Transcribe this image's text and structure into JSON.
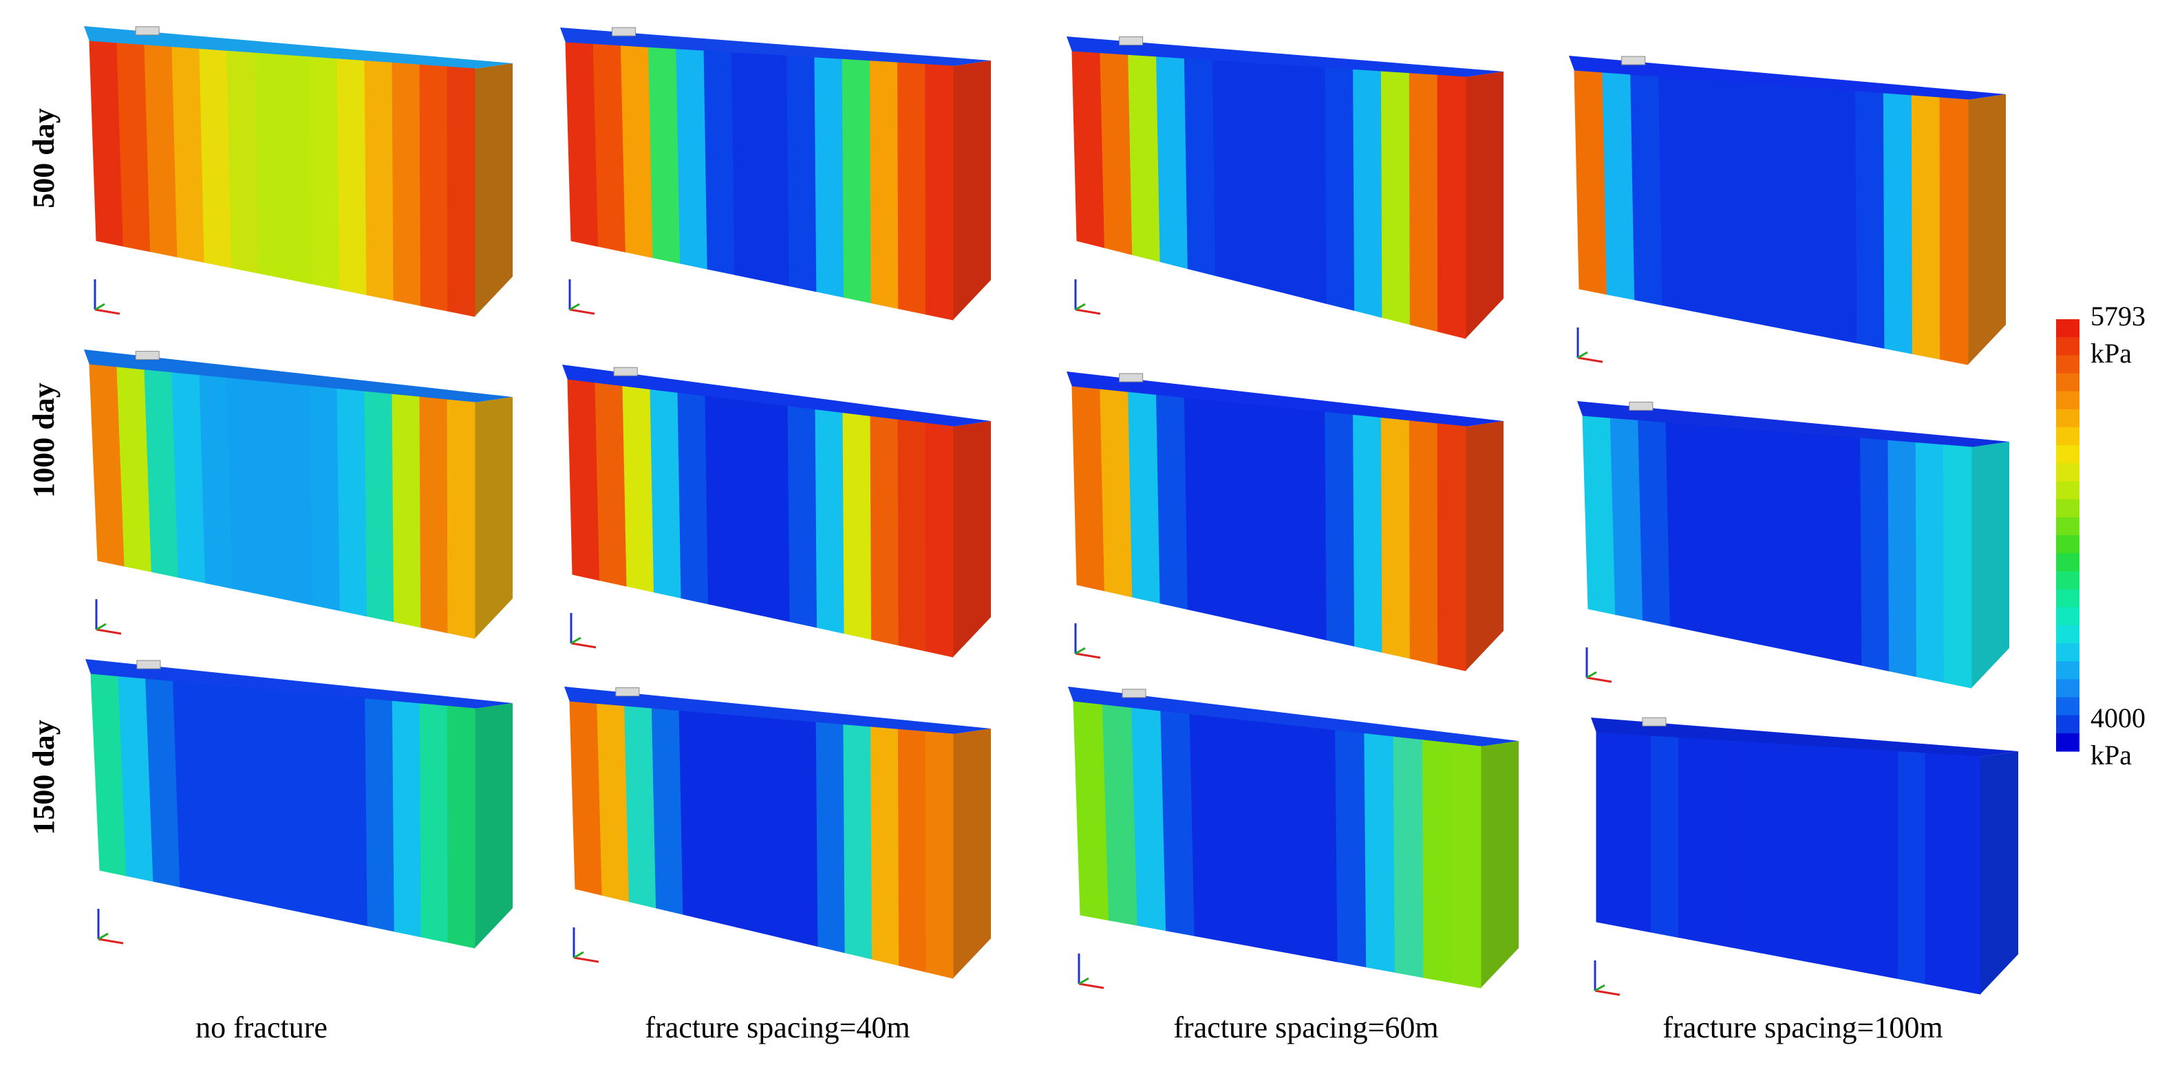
{
  "row_labels": [
    "500 day",
    "1000 day",
    "1500 day"
  ],
  "column_labels": [
    "no fracture",
    "fracture spacing=40m",
    "fracture spacing=60m",
    "fracture spacing=100m"
  ],
  "colorbar": {
    "max_value": "5793",
    "max_unit": "kPa",
    "min_value": "4000",
    "min_unit": "kPa",
    "colors": [
      "#0000d8",
      "#0a3fe6",
      "#0f66ee",
      "#138bf2",
      "#14a9f2",
      "#14c8ee",
      "#12e0dc",
      "#10e8c0",
      "#12e89c",
      "#18e474",
      "#24dc48",
      "#46dc22",
      "#70e018",
      "#98e410",
      "#bce80c",
      "#dce60a",
      "#f4e006",
      "#f8c806",
      "#f8ac06",
      "#f69006",
      "#f27406",
      "#ee5808",
      "#ec3c0a",
      "#e8200c"
    ]
  },
  "panels": [
    [
      {
        "left": "#c83e10",
        "right": "#b06a12",
        "top": "#1aa0e8",
        "bands": [
          "#e63010",
          "#ee5008",
          "#f28006",
          "#f4b006",
          "#e8dc0a",
          "#c8e40c",
          "#bce80c",
          "#bce80c",
          "#c2e80c",
          "#e6e00a",
          "#f4b006",
          "#f28006",
          "#ee5008",
          "#e63c0c"
        ]
      },
      {
        "left": "#c83e10",
        "right": "#c82c10",
        "top": "#1244e8",
        "bands": [
          "#e63010",
          "#ee5008",
          "#f6a006",
          "#34e060",
          "#12b4f2",
          "#0a44e8",
          "#0a34e4",
          "#0a34e4",
          "#0a44e8",
          "#12b4f2",
          "#34e060",
          "#f6a006",
          "#ee5008",
          "#e63010"
        ]
      },
      {
        "left": "#c83e10",
        "right": "#c82c10",
        "top": "#0f3ce8",
        "bands": [
          "#e63010",
          "#f07006",
          "#b0e80e",
          "#12b4f2",
          "#0a44e8",
          "#0a34e4",
          "#0a34e4",
          "#0a34e4",
          "#0a34e4",
          "#0a44e8",
          "#12b4f2",
          "#b0e80e",
          "#f07006",
          "#e63010"
        ]
      },
      {
        "left": "#c06010",
        "right": "#b86a12",
        "top": "#0f30e8",
        "bands": [
          "#f07006",
          "#14b4f2",
          "#0a44e8",
          "#0a34e4",
          "#0a34e4",
          "#0a34e4",
          "#0a34e4",
          "#0a34e4",
          "#0a34e4",
          "#0a34e4",
          "#0a44e8",
          "#12b4f2",
          "#f4b006",
          "#f07006"
        ]
      }
    ],
    [
      {
        "left": "#c86010",
        "right": "#b88c10",
        "top": "#1270e0",
        "bands": [
          "#f08006",
          "#bce80c",
          "#1ad8b0",
          "#14c0ee",
          "#12a6f0",
          "#12a0f0",
          "#12a0f0",
          "#12a0f0",
          "#12a6f0",
          "#14c0ee",
          "#1ad8b0",
          "#bce80c",
          "#f08006",
          "#f4b006"
        ]
      },
      {
        "left": "#c83e10",
        "right": "#c82c10",
        "top": "#0f36e8",
        "bands": [
          "#e63010",
          "#ee6008",
          "#d8e60a",
          "#14c0ee",
          "#0a50e8",
          "#0a2ce2",
          "#0a2ce2",
          "#0a2ce2",
          "#0a50e8",
          "#14c0ee",
          "#d8e60a",
          "#ee6008",
          "#e63c0c",
          "#e63010"
        ]
      },
      {
        "left": "#c06010",
        "right": "#c03c10",
        "top": "#0f30e8",
        "bands": [
          "#f07006",
          "#f4b006",
          "#14c0ee",
          "#0a50e8",
          "#0a2ce2",
          "#0a2ce2",
          "#0a2ce2",
          "#0a2ce2",
          "#0a2ce2",
          "#0a50e8",
          "#14c0ee",
          "#f4b006",
          "#f07006",
          "#e63c0c"
        ]
      },
      {
        "left": "#14b0b0",
        "right": "#14b8b8",
        "top": "#1030e0",
        "bands": [
          "#14c8e8",
          "#1290f0",
          "#0a50e8",
          "#0a2ce2",
          "#0a2ce2",
          "#0a2ce2",
          "#0a2ce2",
          "#0a2ce2",
          "#0a2ce2",
          "#0a2ce2",
          "#0a50e8",
          "#1290f0",
          "#14c0ee",
          "#14d0e0"
        ]
      }
    ],
    [
      {
        "left": "#12b08c",
        "right": "#12b070",
        "top": "#0f40e8",
        "bands": [
          "#18dc9c",
          "#14c0ee",
          "#0a6ae8",
          "#0a40e8",
          "#0a40e8",
          "#0a40e8",
          "#0a40e8",
          "#0a40e8",
          "#0a40e8",
          "#0a40e8",
          "#0a6ae8",
          "#14c0ee",
          "#18dc9c",
          "#18d070"
        ]
      },
      {
        "left": "#c86010",
        "right": "#c06810",
        "top": "#0f40e8",
        "bands": [
          "#f07006",
          "#f4b006",
          "#20d8c0",
          "#0a6ae8",
          "#0a2ce2",
          "#0a2ce2",
          "#0a2ce2",
          "#0a2ce2",
          "#0a2ce2",
          "#0a6ae8",
          "#20d8c0",
          "#f4b006",
          "#f07006",
          "#f08006"
        ]
      },
      {
        "left": "#6ab010",
        "right": "#6ab010",
        "top": "#0f40e8",
        "bands": [
          "#80e010",
          "#38d87a",
          "#14c0ee",
          "#0a50e8",
          "#0a2ce2",
          "#0a2ce2",
          "#0a2ce2",
          "#0a2ce2",
          "#0a2ce2",
          "#0a50e8",
          "#14c0ee",
          "#38d8a0",
          "#80e010",
          "#86e010"
        ]
      },
      {
        "left": "#0a2cc0",
        "right": "#0a2cc0",
        "top": "#0a26d0",
        "bands": [
          "#0a2ce2",
          "#0a2ce2",
          "#0a40e8",
          "#0a2ce2",
          "#0a2ce2",
          "#0a2ce2",
          "#0a2ce2",
          "#0a2ce2",
          "#0a2ce2",
          "#0a2ce2",
          "#0a2ce2",
          "#0a40e8",
          "#0a2ce2",
          "#0a2ce2"
        ]
      }
    ]
  ]
}
